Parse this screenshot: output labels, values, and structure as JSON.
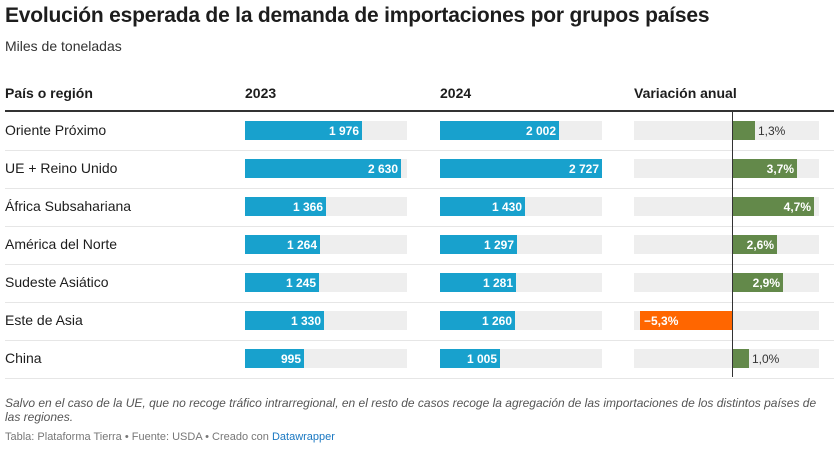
{
  "title": "Evolución esperada de la demanda de importaciones por grupos países",
  "subtitle": "Miles de toneladas",
  "headers": {
    "region": "País o región",
    "y2023": "2023",
    "y2024": "2024",
    "change": "Variación anual"
  },
  "colors": {
    "bar": "#18a1cd",
    "positive": "#63894a",
    "negative": "#ff6600",
    "track": "#eeeeee"
  },
  "chart_data": {
    "type": "table",
    "columns": [
      "País o región",
      "2023",
      "2024",
      "Variación anual"
    ],
    "bar_max": 2727,
    "change_range": [
      -5.3,
      4.7
    ],
    "rows": [
      {
        "region": "Oriente Próximo",
        "v2023": 1976,
        "v2024": 2002,
        "change": 1.3,
        "v2023_label": "1 976",
        "v2024_label": "2 002",
        "change_label": "1,3%"
      },
      {
        "region": "UE + Reino Unido",
        "v2023": 2630,
        "v2024": 2727,
        "change": 3.7,
        "v2023_label": "2 630",
        "v2024_label": "2 727",
        "change_label": "3,7%"
      },
      {
        "region": "África Subsahariana",
        "v2023": 1366,
        "v2024": 1430,
        "change": 4.7,
        "v2023_label": "1 366",
        "v2024_label": "1 430",
        "change_label": "4,7%"
      },
      {
        "region": "América del Norte",
        "v2023": 1264,
        "v2024": 1297,
        "change": 2.6,
        "v2023_label": "1 264",
        "v2024_label": "1 297",
        "change_label": "2,6%"
      },
      {
        "region": "Sudeste Asiático",
        "v2023": 1245,
        "v2024": 1281,
        "change": 2.9,
        "v2023_label": "1 245",
        "v2024_label": "1 281",
        "change_label": "2,9%"
      },
      {
        "region": "Este de Asia",
        "v2023": 1330,
        "v2024": 1260,
        "change": -5.3,
        "v2023_label": "1 330",
        "v2024_label": "1 260",
        "change_label": "−5,3%"
      },
      {
        "region": "China",
        "v2023": 995,
        "v2024": 1005,
        "change": 1.0,
        "v2023_label": "995",
        "v2024_label": "1 005",
        "change_label": "1,0%"
      }
    ]
  },
  "note": "Salvo en el caso de la UE, que no recoge tráfico intrarregional, en el resto de casos recoge la agregación de las importaciones de los distintos países de las regiones.",
  "footer": {
    "text": "Tabla: Plataforma Tierra • Fuente: USDA • Creado con ",
    "link": "Datawrapper"
  }
}
